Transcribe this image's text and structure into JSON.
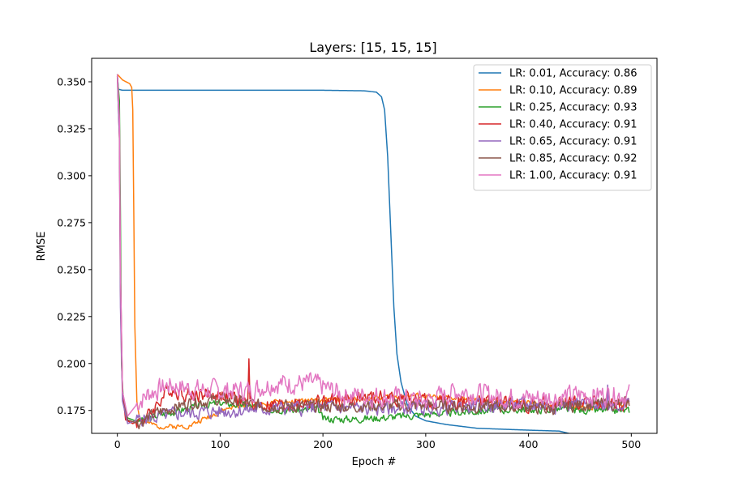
{
  "chart_data": {
    "type": "line",
    "title": "Layers: [15, 15, 15]",
    "xlabel": "Epoch #",
    "ylabel": "RMSE",
    "xlim": [
      -25,
      525
    ],
    "ylim": [
      0.1628,
      0.3625
    ],
    "xticks": [
      0,
      100,
      200,
      300,
      400,
      500
    ],
    "yticks": [
      0.175,
      0.2,
      0.225,
      0.25,
      0.275,
      0.3,
      0.325,
      0.35
    ],
    "ytick_labels": [
      "0.175",
      "0.200",
      "0.225",
      "0.250",
      "0.275",
      "0.300",
      "0.325",
      "0.350"
    ],
    "grid": false,
    "legend_position": "upper right",
    "series": [
      {
        "name": "LR: 0.01, Accuracy: 0.86",
        "color": "#1f77b4",
        "noise": 0,
        "seed": 1,
        "points": [
          [
            0,
            0.354
          ],
          [
            1,
            0.346
          ],
          [
            5,
            0.3455
          ],
          [
            100,
            0.3455
          ],
          [
            200,
            0.3455
          ],
          [
            240,
            0.3452
          ],
          [
            252,
            0.3445
          ],
          [
            257,
            0.342
          ],
          [
            260,
            0.335
          ],
          [
            263,
            0.31
          ],
          [
            266,
            0.27
          ],
          [
            269,
            0.23
          ],
          [
            272,
            0.205
          ],
          [
            276,
            0.19
          ],
          [
            282,
            0.178
          ],
          [
            290,
            0.172
          ],
          [
            300,
            0.1695
          ],
          [
            320,
            0.1675
          ],
          [
            350,
            0.1655
          ],
          [
            400,
            0.1645
          ],
          [
            430,
            0.164
          ],
          [
            445,
            0.162
          ],
          [
            460,
            0.1612
          ],
          [
            475,
            0.1612
          ],
          [
            490,
            0.1618
          ],
          [
            498,
            0.162
          ]
        ]
      },
      {
        "name": "LR: 0.10, Accuracy: 0.89",
        "color": "#ff7f0e",
        "noise": 0.0012,
        "seed": 2,
        "points": [
          [
            0,
            0.354
          ],
          [
            5,
            0.351
          ],
          [
            12,
            0.349
          ],
          [
            14,
            0.347
          ],
          [
            15,
            0.335
          ],
          [
            16,
            0.28
          ],
          [
            17,
            0.22
          ],
          [
            19,
            0.18
          ],
          [
            22,
            0.171
          ],
          [
            30,
            0.168
          ],
          [
            40,
            0.1665
          ],
          [
            60,
            0.1665
          ],
          [
            70,
            0.1668
          ],
          [
            90,
            0.172
          ],
          [
            110,
            0.1765
          ],
          [
            150,
            0.179
          ],
          [
            200,
            0.1805
          ],
          [
            250,
            0.1815
          ],
          [
            280,
            0.183
          ],
          [
            300,
            0.1825
          ],
          [
            350,
            0.1805
          ],
          [
            400,
            0.179
          ],
          [
            430,
            0.178
          ],
          [
            460,
            0.1765
          ],
          [
            480,
            0.178
          ],
          [
            498,
            0.1785
          ]
        ]
      },
      {
        "name": "LR: 0.25, Accuracy: 0.93",
        "color": "#2ca02c",
        "noise": 0.0018,
        "seed": 3,
        "points": [
          [
            0,
            0.353
          ],
          [
            2,
            0.34
          ],
          [
            3,
            0.28
          ],
          [
            4,
            0.2
          ],
          [
            6,
            0.178
          ],
          [
            10,
            0.171
          ],
          [
            20,
            0.169
          ],
          [
            40,
            0.1725
          ],
          [
            80,
            0.1775
          ],
          [
            100,
            0.179
          ],
          [
            120,
            0.178
          ],
          [
            150,
            0.176
          ],
          [
            180,
            0.175
          ],
          [
            195,
            0.176
          ],
          [
            200,
            0.1705
          ],
          [
            230,
            0.1705
          ],
          [
            250,
            0.171
          ],
          [
            280,
            0.172
          ],
          [
            300,
            0.173
          ],
          [
            350,
            0.1745
          ],
          [
            380,
            0.1755
          ],
          [
            420,
            0.1755
          ],
          [
            460,
            0.175
          ],
          [
            498,
            0.1748
          ]
        ]
      },
      {
        "name": "LR: 0.40, Accuracy: 0.91",
        "color": "#d62728",
        "noise": 0.0035,
        "seed": 4,
        "points": [
          [
            0,
            0.353
          ],
          [
            2,
            0.32
          ],
          [
            3,
            0.24
          ],
          [
            5,
            0.185
          ],
          [
            8,
            0.17
          ],
          [
            15,
            0.168
          ],
          [
            30,
            0.172
          ],
          [
            50,
            0.1865
          ],
          [
            70,
            0.1835
          ],
          [
            100,
            0.1835
          ],
          [
            120,
            0.18
          ],
          [
            140,
            0.178
          ],
          [
            160,
            0.1775
          ],
          [
            200,
            0.1795
          ],
          [
            240,
            0.1815
          ],
          [
            280,
            0.1815
          ],
          [
            300,
            0.1795
          ],
          [
            350,
            0.1795
          ],
          [
            380,
            0.1785
          ],
          [
            400,
            0.178
          ],
          [
            430,
            0.1785
          ],
          [
            460,
            0.179
          ],
          [
            498,
            0.1782
          ]
        ],
        "spikes": [
          [
            128,
            0.2025
          ]
        ]
      },
      {
        "name": "LR: 0.65, Accuracy: 0.91",
        "color": "#9467bd",
        "noise": 0.0035,
        "seed": 5,
        "points": [
          [
            0,
            0.352
          ],
          [
            2,
            0.32
          ],
          [
            3,
            0.23
          ],
          [
            5,
            0.18
          ],
          [
            10,
            0.168
          ],
          [
            20,
            0.17
          ],
          [
            40,
            0.1715
          ],
          [
            60,
            0.1735
          ],
          [
            100,
            0.1745
          ],
          [
            150,
            0.176
          ],
          [
            200,
            0.1765
          ],
          [
            250,
            0.176
          ],
          [
            300,
            0.1765
          ],
          [
            350,
            0.177
          ],
          [
            380,
            0.178
          ],
          [
            420,
            0.178
          ],
          [
            460,
            0.1785
          ],
          [
            498,
            0.1785
          ]
        ],
        "spikes": [
          [
            477,
            0.1885
          ]
        ]
      },
      {
        "name": "LR: 0.85, Accuracy: 0.92",
        "color": "#8c564b",
        "noise": 0.003,
        "seed": 6,
        "points": [
          [
            0,
            0.354
          ],
          [
            2,
            0.33
          ],
          [
            3,
            0.25
          ],
          [
            5,
            0.185
          ],
          [
            10,
            0.17
          ],
          [
            20,
            0.168
          ],
          [
            40,
            0.174
          ],
          [
            70,
            0.179
          ],
          [
            100,
            0.181
          ],
          [
            140,
            0.1775
          ],
          [
            200,
            0.177
          ],
          [
            250,
            0.1775
          ],
          [
            300,
            0.1775
          ],
          [
            350,
            0.177
          ],
          [
            400,
            0.177
          ],
          [
            420,
            0.1755
          ],
          [
            440,
            0.1775
          ],
          [
            470,
            0.1785
          ],
          [
            498,
            0.1785
          ]
        ]
      },
      {
        "name": "LR: 1.00, Accuracy: 0.91",
        "color": "#e377c2",
        "noise": 0.005,
        "seed": 7,
        "points": [
          [
            0,
            0.354
          ],
          [
            2,
            0.33
          ],
          [
            3,
            0.25
          ],
          [
            5,
            0.185
          ],
          [
            10,
            0.172
          ],
          [
            20,
            0.179
          ],
          [
            30,
            0.184
          ],
          [
            50,
            0.1885
          ],
          [
            80,
            0.186
          ],
          [
            100,
            0.1855
          ],
          [
            130,
            0.1855
          ],
          [
            150,
            0.1895
          ],
          [
            190,
            0.1895
          ],
          [
            220,
            0.1835
          ],
          [
            260,
            0.1825
          ],
          [
            300,
            0.18
          ],
          [
            330,
            0.1855
          ],
          [
            370,
            0.1825
          ],
          [
            390,
            0.1815
          ],
          [
            420,
            0.182
          ],
          [
            460,
            0.1835
          ],
          [
            498,
            0.1835
          ]
        ]
      }
    ]
  }
}
